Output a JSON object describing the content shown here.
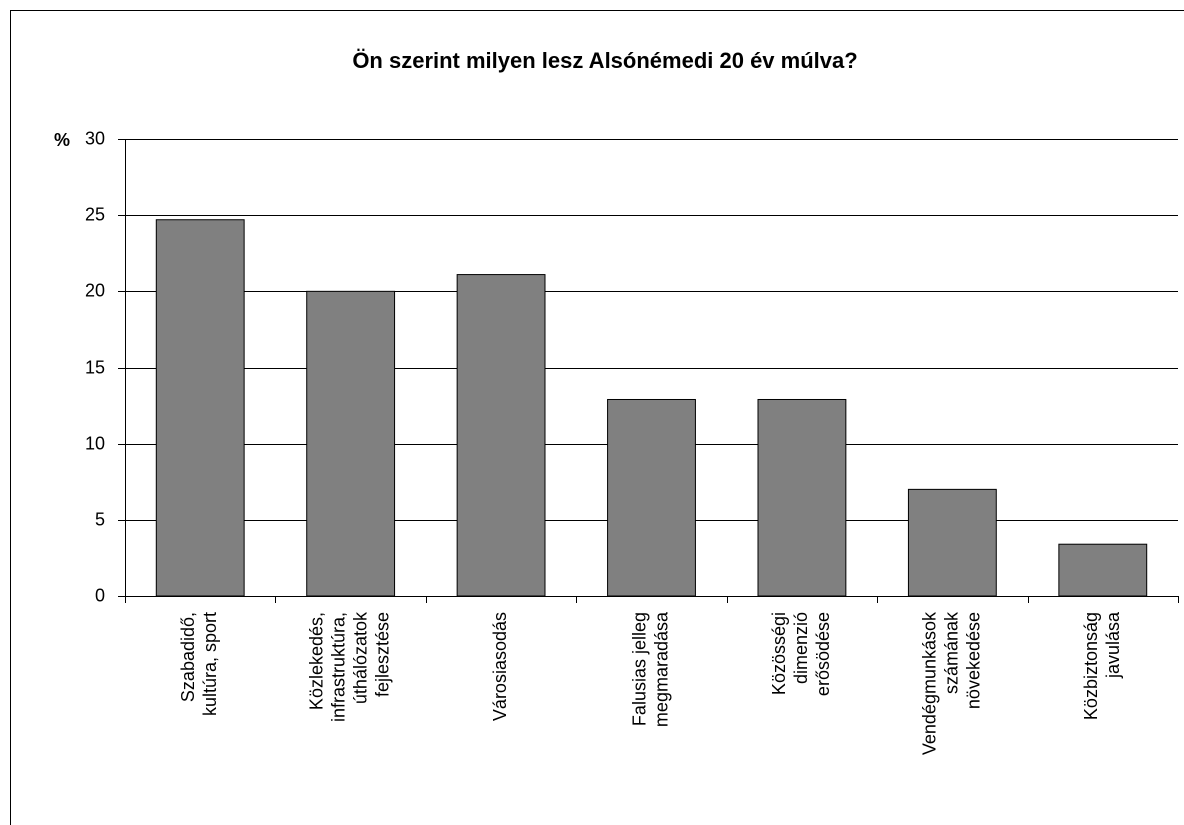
{
  "chart_data": {
    "type": "bar",
    "title": "Ön szerint milyen lesz Alsónémedi 20 év múlva?",
    "y_label": "%",
    "categories": [
      "Szabadidő,\nkultúra, sport",
      "Közlekedés,\ninfrastruktúra,\núthálózatok\nfejlesztése",
      "Városiasodás",
      "Falusias jelleg\nmegmaradása",
      "Közösségi\ndimenzió\nerősödése",
      "Vendégmunkások\nszámának\nnövekedése",
      "Közbiztonság\njavulása"
    ],
    "values": [
      24.7,
      20,
      21.1,
      12.9,
      12.9,
      7,
      3.4
    ],
    "color": "#808080",
    "ylim": [
      0,
      30
    ],
    "yticks": [
      0,
      5,
      10,
      15,
      20,
      25,
      30
    ],
    "grid": true
  }
}
